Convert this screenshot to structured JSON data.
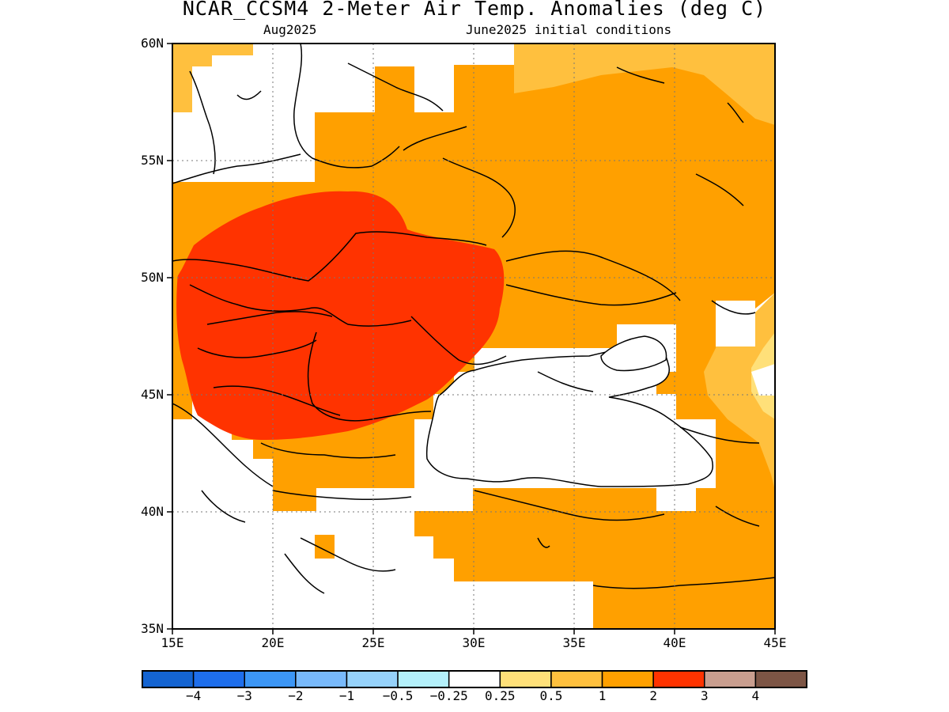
{
  "title": "NCAR_CCSM4 2-Meter Air Temp. Anomalies (deg C)",
  "subtitle_left": "Aug2025",
  "subtitle_right": "June2025 initial conditions",
  "map": {
    "lon_range": [
      15,
      45
    ],
    "lat_range": [
      35,
      60
    ],
    "lon_ticks": [
      "15E",
      "20E",
      "25E",
      "30E",
      "35E",
      "40E",
      "45E"
    ],
    "lat_ticks": [
      "60N",
      "55N",
      "50N",
      "45N",
      "40N",
      "35N"
    ],
    "grid_style": "dotted",
    "anomaly_regions": [
      {
        "level": "0.5 to 1",
        "color": "#ffc03e",
        "area": "northwest corner, eastern Russia edge, far east near 45N"
      },
      {
        "level": "1 to 2",
        "color": "#ffa000",
        "area": "Eastern Europe, Ukraine, western Russia, Balkans, Turkey"
      },
      {
        "level": "2 to 3",
        "color": "#ff3300",
        "area": "Central Europe: Poland, Hungary, Romania, Slovakia"
      },
      {
        "level": "0.25 to 0.5",
        "color": "#ffe079",
        "area": "small area near 44E 45N"
      },
      {
        "level": "-0.25 to 0.25",
        "color": "#ffffff",
        "area": "Black Sea, Baltic, Adriatic, Aegean, parts of Scandinavia"
      }
    ]
  },
  "colorbar": {
    "colors": [
      "#1464d2",
      "#1e6eeb",
      "#3c96f5",
      "#78b9fa",
      "#96d2fa",
      "#b4f0fa",
      "#ffffff",
      "#ffe079",
      "#ffc03e",
      "#ffa000",
      "#ff3300",
      "#c99e8f",
      "#7d5545"
    ],
    "labels": [
      "−4",
      "−3",
      "−2",
      "−1",
      "−0.5",
      "−0.25",
      "0.25",
      "0.5",
      "1",
      "2",
      "3",
      "4"
    ]
  }
}
